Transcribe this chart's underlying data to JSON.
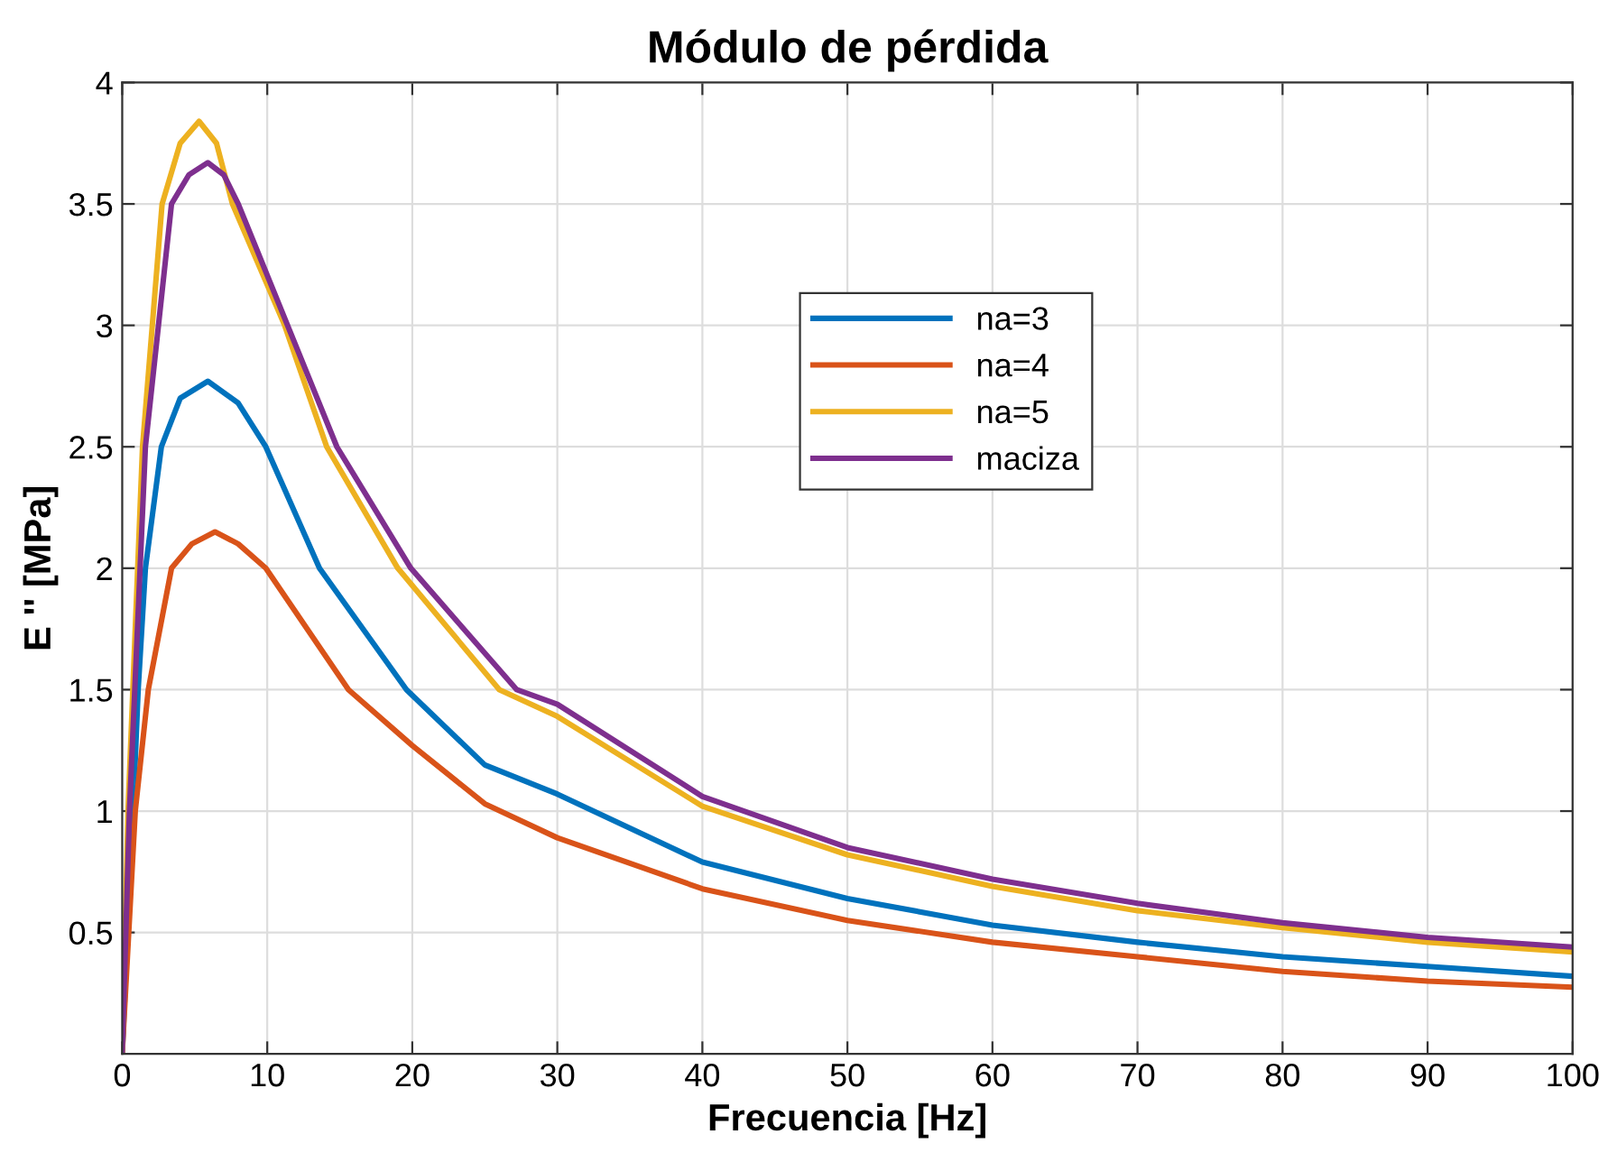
{
  "chart_data": {
    "type": "line",
    "title": "Módulo de pérdida",
    "xlabel": "Frecuencia [Hz]",
    "ylabel": "E '' [MPa]",
    "xlim": [
      0,
      100
    ],
    "ylim": [
      0,
      4
    ],
    "xticks": [
      0,
      10,
      20,
      30,
      40,
      50,
      60,
      70,
      80,
      90,
      100
    ],
    "yticks": [
      0.5,
      1,
      1.5,
      2,
      2.5,
      3,
      3.5,
      4
    ],
    "grid": true,
    "legend": "right",
    "marker": "none",
    "line_style": "solid",
    "series": [
      {
        "name": "na=3",
        "color": "#0072bd",
        "x": [
          0,
          0.75,
          1.1,
          1.6,
          2.7,
          4,
          5.9,
          8,
          9.9,
          13.6,
          19.6,
          25,
          30,
          40,
          50,
          60,
          70,
          80,
          90,
          100
        ],
        "values": [
          0,
          1.0,
          1.5,
          2.0,
          2.5,
          2.7,
          2.77,
          2.68,
          2.5,
          2.0,
          1.5,
          1.19,
          1.07,
          0.79,
          0.64,
          0.53,
          0.46,
          0.4,
          0.36,
          0.32
        ]
      },
      {
        "name": "na=4",
        "color": "#d95319",
        "x": [
          0,
          0.45,
          0.9,
          1.8,
          3.4,
          4.8,
          6.4,
          8,
          9.9,
          15.6,
          20,
          25,
          30,
          40,
          50,
          60,
          70,
          80,
          90,
          100
        ],
        "values": [
          0,
          0.5,
          1.0,
          1.5,
          2.0,
          2.1,
          2.15,
          2.1,
          2.0,
          1.5,
          1.27,
          1.03,
          0.89,
          0.68,
          0.55,
          0.46,
          0.4,
          0.34,
          0.3,
          0.275
        ]
      },
      {
        "name": "na=5",
        "color": "#edb120",
        "x": [
          0,
          0.4,
          1.4,
          2.75,
          4,
          5.3,
          6.5,
          7.6,
          11.2,
          14.1,
          19,
          26,
          30,
          40,
          50,
          60,
          70,
          80,
          90,
          100
        ],
        "values": [
          0,
          1.0,
          2.5,
          3.5,
          3.75,
          3.84,
          3.75,
          3.5,
          3.0,
          2.5,
          2.0,
          1.5,
          1.39,
          1.02,
          0.82,
          0.69,
          0.59,
          0.52,
          0.46,
          0.42
        ]
      },
      {
        "name": "maciza",
        "color": "#7e2f8e",
        "x": [
          0,
          0.5,
          1.6,
          3.4,
          4.6,
          5.9,
          7,
          8,
          11.4,
          14.8,
          19.9,
          27.2,
          30,
          40,
          50,
          60,
          70,
          80,
          90,
          100
        ],
        "values": [
          0,
          1.0,
          2.5,
          3.5,
          3.62,
          3.67,
          3.62,
          3.5,
          3.0,
          2.5,
          2.0,
          1.5,
          1.44,
          1.06,
          0.85,
          0.72,
          0.62,
          0.54,
          0.48,
          0.44
        ]
      }
    ]
  }
}
